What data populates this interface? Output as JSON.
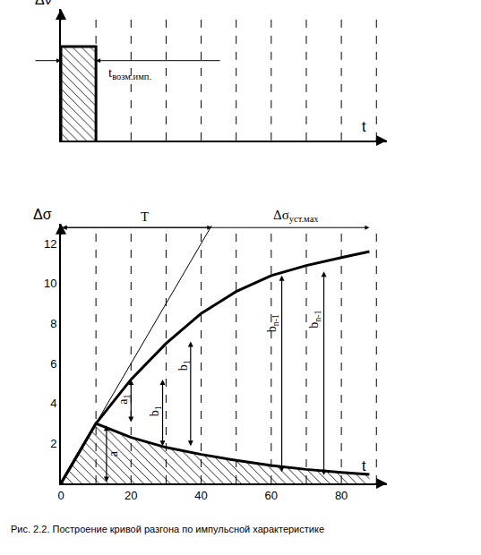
{
  "caption": "Рис. 2.2. Построение кривой разгона по импульсной характеристике",
  "chart_data": [
    {
      "type": "area",
      "x_label": "t",
      "y_label": "Δν",
      "xlim": [
        0,
        93
      ],
      "ylim": [
        0,
        1.4
      ],
      "tick_labels": false,
      "grid": false,
      "color": "#000000",
      "x": [
        0,
        10
      ],
      "values": [
        1,
        1
      ],
      "sampling_t": [
        10,
        20,
        30,
        40,
        50,
        60,
        70,
        80,
        90
      ],
      "dimension": {
        "label": "t",
        "subscript": "возм.имп.",
        "x0": 0,
        "x1": 10,
        "y": 0.85,
        "label_x": 13
      }
    },
    {
      "type": "line",
      "x_label": "t",
      "y_label": "Δσ",
      "xlim": [
        0,
        93
      ],
      "ylim": [
        0,
        13
      ],
      "xticks": [
        0,
        20,
        40,
        60,
        80
      ],
      "yticks": [
        2,
        4,
        6,
        8,
        10,
        12
      ],
      "grid": false,
      "sampling_t": [
        10,
        20,
        30,
        40,
        50,
        60,
        70,
        80,
        90
      ],
      "series": [
        {
          "type": "line",
          "color": "#000000",
          "x": [
            0,
            10,
            20,
            30,
            40,
            50,
            60,
            70,
            80,
            88
          ],
          "values": [
            0,
            3,
            5.2,
            7,
            8.5,
            9.6,
            10.4,
            10.9,
            11.3,
            11.6
          ]
        },
        {
          "type": "area",
          "color": "#000000",
          "x": [
            0,
            10,
            20,
            30,
            40,
            50,
            60,
            70,
            80,
            88
          ],
          "values": [
            0,
            3,
            2.3,
            1.8,
            1.45,
            1.15,
            0.9,
            0.7,
            0.55,
            0.45
          ]
        },
        {
          "type": "line",
          "line_style": "thin",
          "color": "#000000",
          "x": [
            0,
            43
          ],
          "values": [
            0,
            12.9
          ]
        }
      ],
      "dimensions": [
        {
          "label": "T",
          "x0": 0,
          "x1": 43,
          "y": 12.8,
          "label_x": 24
        },
        {
          "label": "Δσ",
          "subscript": "уст.мах",
          "x0": 0,
          "x1": 88,
          "y": 12.8,
          "label_x": 67
        }
      ],
      "arrows": [
        {
          "label": "a",
          "x": 13,
          "y0": 0,
          "y1": 2.9,
          "label_x": 15,
          "label_y": 1.5
        },
        {
          "label": "a",
          "subscript": "1",
          "x": 20,
          "y0": 3,
          "y1": 5.2,
          "label_x": 18,
          "label_y": 4.2
        },
        {
          "label": "b",
          "subscript": "1",
          "x": 29,
          "y0": 1.8,
          "y1": 5.2,
          "label_x": 27,
          "label_y": 3.6
        },
        {
          "label": "b",
          "subscript": "1",
          "x": 37,
          "y0": 1.8,
          "y1": 7.1,
          "label_x": 35,
          "label_y": 5.9
        },
        {
          "label": "b",
          "subscript": "n-1",
          "x": 63,
          "y0": 0.5,
          "y1": 10.4,
          "label_x": 60.5,
          "label_y": 8
        },
        {
          "label": "b",
          "subscript": "n-1",
          "x": 75,
          "y0": 0.35,
          "y1": 10.6,
          "label_x": 72.5,
          "label_y": 8.2
        }
      ]
    }
  ]
}
